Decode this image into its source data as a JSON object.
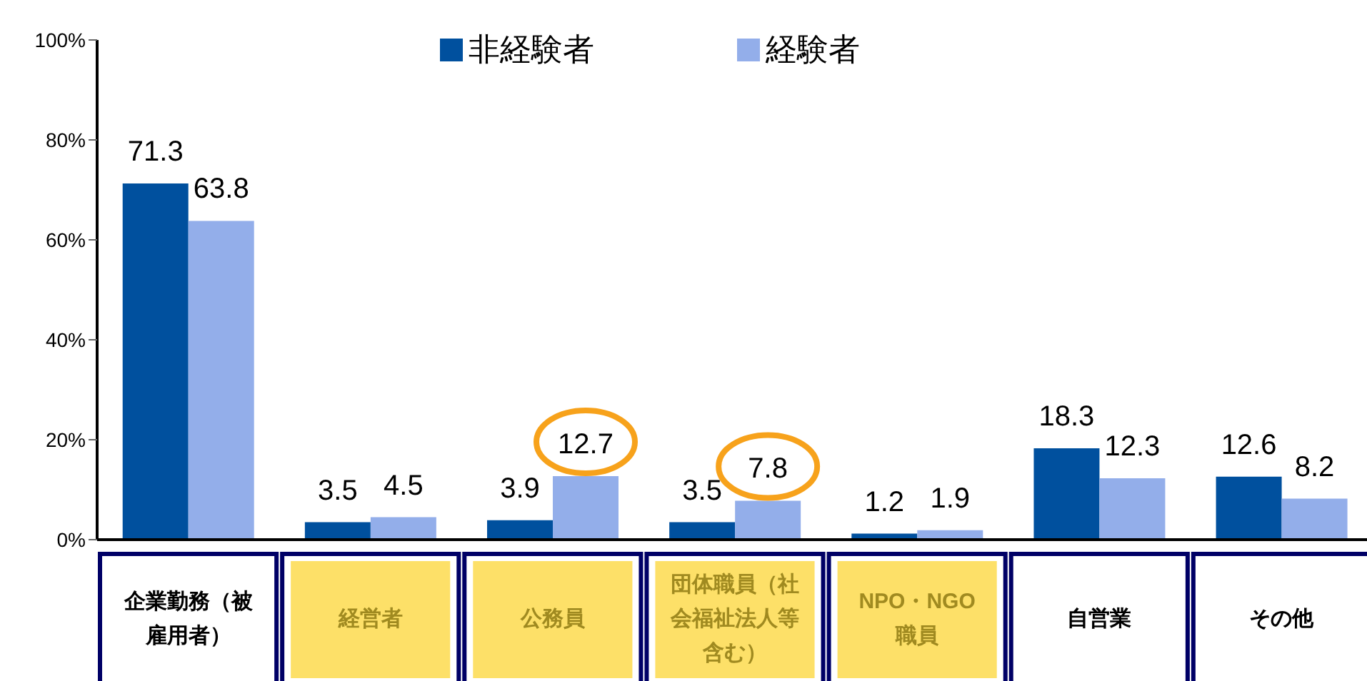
{
  "chart_data": {
    "type": "bar",
    "categories": [
      "企業勤務（被雇用者）",
      "経営者",
      "公務員",
      "団体職員（社会福祉法人等含む）",
      "NPO・NGO職員",
      "自営業",
      "その他"
    ],
    "series": [
      {
        "name": "非経験者",
        "color": "#00509e",
        "values": [
          71.3,
          3.5,
          3.9,
          3.5,
          1.2,
          18.3,
          12.6
        ]
      },
      {
        "name": "経験者",
        "color": "#93aeea",
        "values": [
          63.8,
          4.5,
          12.7,
          7.8,
          1.9,
          12.3,
          8.2
        ]
      }
    ],
    "ylim": [
      0,
      100
    ],
    "yticks": [
      {
        "value": 0,
        "label": "0%"
      },
      {
        "value": 20,
        "label": "20%"
      },
      {
        "value": 40,
        "label": "40%"
      },
      {
        "value": 60,
        "label": "60%"
      },
      {
        "value": 80,
        "label": "80%"
      },
      {
        "value": 100,
        "label": "100%"
      }
    ],
    "data_labels": true,
    "grid": false,
    "legend": "top"
  }
}
